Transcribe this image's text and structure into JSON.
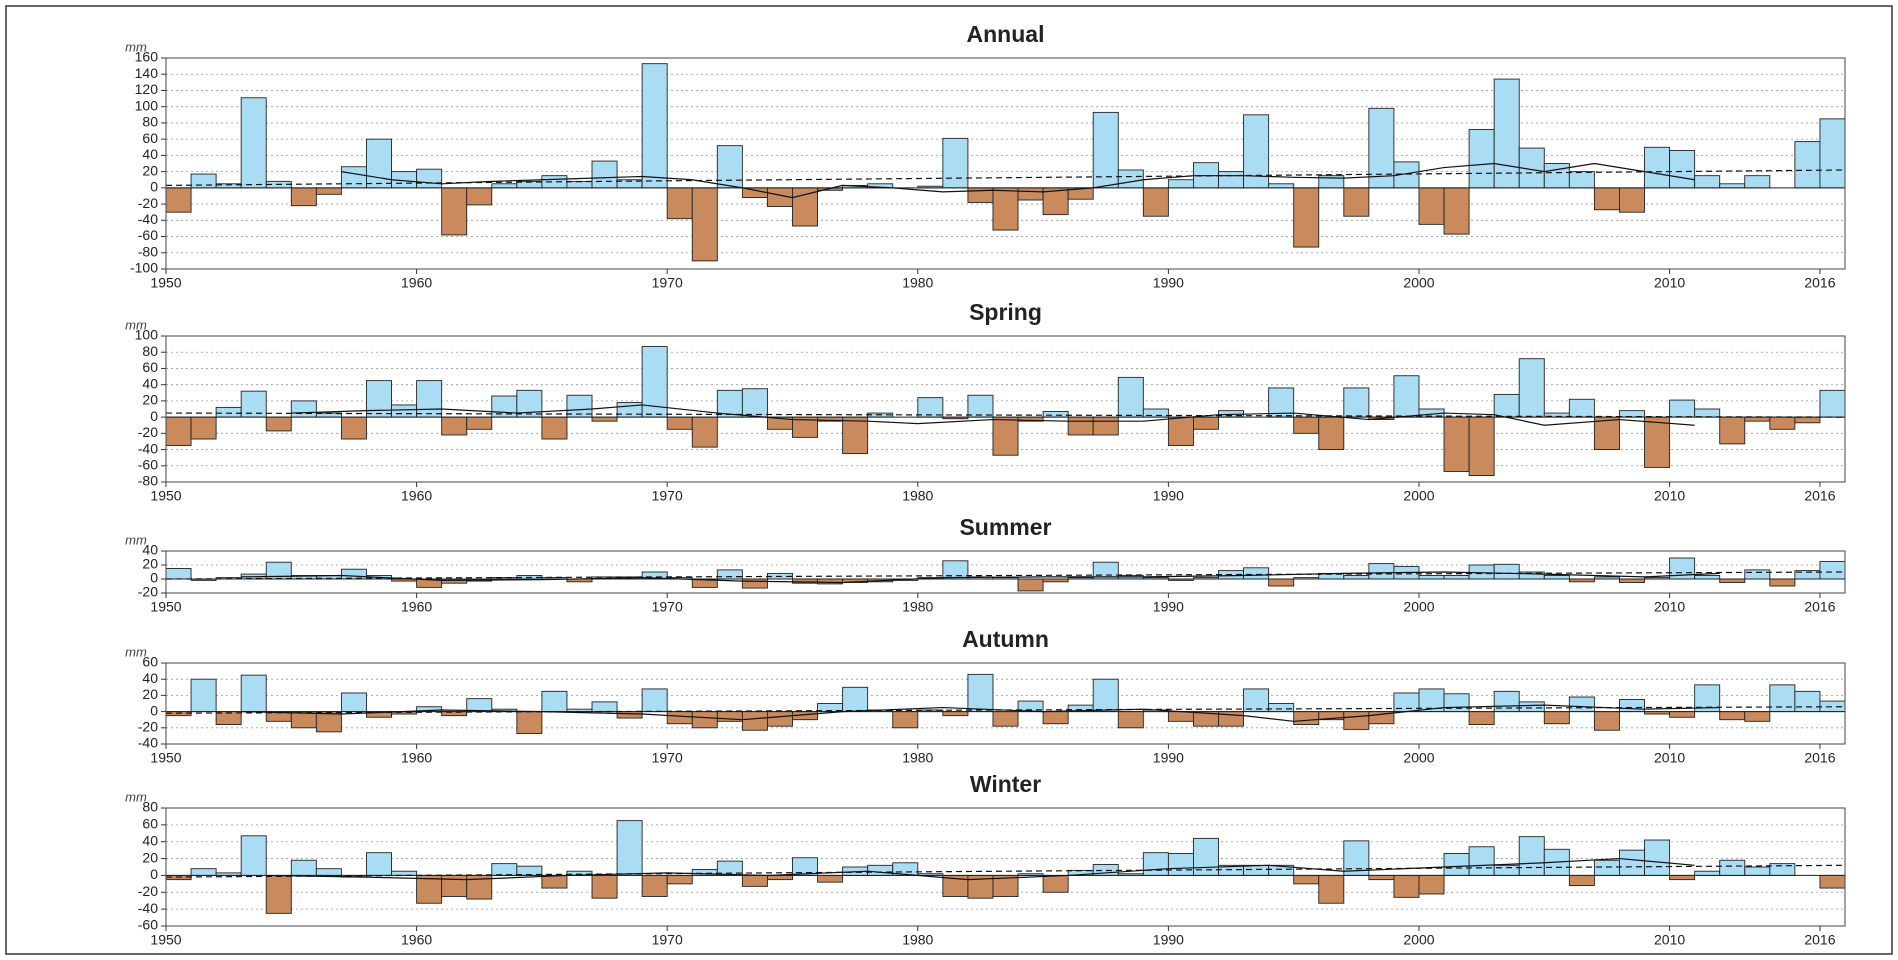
{
  "chart_data": [
    {
      "type": "bar",
      "title": "Annual",
      "unit": "mm",
      "pos_color": "#aadcf4",
      "neg_color": "#c98b5e",
      "grid": true,
      "x": [
        1950,
        1951,
        1952,
        1953,
        1954,
        1955,
        1956,
        1957,
        1958,
        1959,
        1960,
        1961,
        1962,
        1963,
        1964,
        1965,
        1966,
        1967,
        1968,
        1969,
        1970,
        1971,
        1972,
        1973,
        1974,
        1975,
        1976,
        1977,
        1978,
        1979,
        1980,
        1981,
        1982,
        1983,
        1984,
        1985,
        1986,
        1987,
        1988,
        1989,
        1990,
        1991,
        1992,
        1993,
        1994,
        1995,
        1996,
        1997,
        1998,
        1999,
        2000,
        2001,
        2002,
        2003,
        2004,
        2005,
        2006,
        2007,
        2008,
        2009,
        2010,
        2011,
        2012,
        2013,
        2014,
        2015,
        2016
      ],
      "values": [
        -30,
        17,
        5,
        111,
        8,
        -22,
        -8,
        26,
        60,
        20,
        23,
        -58,
        -21,
        5,
        8,
        15,
        8,
        33,
        10,
        153,
        -38,
        -90,
        52,
        -12,
        -23,
        -47,
        -3,
        3,
        5,
        0,
        2,
        61,
        -18,
        -52,
        -15,
        -33,
        -14,
        93,
        22,
        -35,
        10,
        31,
        20,
        90,
        5,
        -73,
        15,
        -35,
        98,
        32,
        -45,
        -57,
        72,
        134,
        49,
        30,
        20,
        -27,
        -30,
        50,
        46,
        15,
        5,
        15,
        0,
        57,
        85
      ],
      "smooth": {
        "x": [
          1957,
          1959,
          1961,
          1963,
          1965,
          1967,
          1969,
          1971,
          1973,
          1975,
          1977,
          1979,
          1981,
          1983,
          1985,
          1987,
          1989,
          1991,
          1993,
          1995,
          1997,
          1999,
          2001,
          2003,
          2005,
          2007,
          2009,
          2011
        ],
        "values": [
          20,
          10,
          5,
          8,
          10,
          12,
          14,
          10,
          0,
          -12,
          3,
          0,
          -5,
          -3,
          -5,
          0,
          10,
          15,
          15,
          13,
          12,
          15,
          25,
          30,
          20,
          30,
          20,
          10
        ]
      },
      "trend": {
        "x": [
          1950,
          2017
        ],
        "values": [
          3,
          22
        ]
      },
      "xlim": [
        1950,
        2017
      ],
      "xticks": [
        1950,
        1960,
        1970,
        1980,
        1990,
        2000,
        2010,
        2016
      ],
      "ylim": [
        -100,
        160
      ],
      "yticks": [
        -100,
        -80,
        -60,
        -40,
        -20,
        0,
        20,
        40,
        60,
        80,
        100,
        120,
        140,
        160
      ]
    },
    {
      "type": "bar",
      "title": "Spring",
      "unit": "mm",
      "pos_color": "#aadcf4",
      "neg_color": "#c98b5e",
      "grid": true,
      "x": [
        1950,
        1951,
        1952,
        1953,
        1954,
        1955,
        1956,
        1957,
        1958,
        1959,
        1960,
        1961,
        1962,
        1963,
        1964,
        1965,
        1966,
        1967,
        1968,
        1969,
        1970,
        1971,
        1972,
        1973,
        1974,
        1975,
        1976,
        1977,
        1978,
        1979,
        1980,
        1981,
        1982,
        1983,
        1984,
        1985,
        1986,
        1987,
        1988,
        1989,
        1990,
        1991,
        1992,
        1993,
        1994,
        1995,
        1996,
        1997,
        1998,
        1999,
        2000,
        2001,
        2002,
        2003,
        2004,
        2005,
        2006,
        2007,
        2008,
        2009,
        2010,
        2011,
        2012,
        2013,
        2014,
        2015,
        2016
      ],
      "values": [
        -35,
        -27,
        12,
        32,
        -17,
        20,
        5,
        -27,
        45,
        15,
        45,
        -22,
        -15,
        26,
        33,
        -27,
        27,
        -5,
        18,
        87,
        -15,
        -37,
        33,
        35,
        -15,
        -25,
        -5,
        -45,
        5,
        0,
        24,
        -2,
        27,
        -47,
        -5,
        7,
        -22,
        -22,
        49,
        10,
        -35,
        -15,
        8,
        0,
        36,
        -20,
        -40,
        36,
        -3,
        51,
        10,
        -67,
        -72,
        28,
        72,
        5,
        22,
        -40,
        8,
        -62,
        21,
        10,
        -33,
        -5,
        -15,
        -7,
        33
      ],
      "smooth": {
        "x": [
          1955,
          1958,
          1961,
          1964,
          1967,
          1969,
          1972,
          1975,
          1978,
          1980,
          1983,
          1986,
          1989,
          1992,
          1995,
          1998,
          2001,
          2003,
          2005,
          2008,
          2011
        ],
        "values": [
          5,
          8,
          10,
          5,
          10,
          15,
          5,
          -3,
          -5,
          -8,
          -3,
          -5,
          -5,
          3,
          5,
          -3,
          5,
          3,
          -10,
          -3,
          -10
        ]
      },
      "trend": {
        "x": [
          1950,
          2017
        ],
        "values": [
          5,
          0
        ]
      },
      "xlim": [
        1950,
        2017
      ],
      "xticks": [
        1950,
        1960,
        1970,
        1980,
        1990,
        2000,
        2010,
        2016
      ],
      "ylim": [
        -80,
        100
      ],
      "yticks": [
        -80,
        -60,
        -40,
        -20,
        0,
        20,
        40,
        60,
        80,
        100
      ]
    },
    {
      "type": "bar",
      "title": "Summer",
      "unit": "mm",
      "pos_color": "#aadcf4",
      "neg_color": "#c98b5e",
      "grid": true,
      "x": [
        1950,
        1951,
        1952,
        1953,
        1954,
        1955,
        1956,
        1957,
        1958,
        1959,
        1960,
        1961,
        1962,
        1963,
        1964,
        1965,
        1966,
        1967,
        1968,
        1969,
        1970,
        1971,
        1972,
        1973,
        1974,
        1975,
        1976,
        1977,
        1978,
        1979,
        1980,
        1981,
        1982,
        1983,
        1984,
        1985,
        1986,
        1987,
        1988,
        1989,
        1990,
        1991,
        1992,
        1993,
        1994,
        1995,
        1996,
        1997,
        1998,
        1999,
        2000,
        2001,
        2002,
        2003,
        2004,
        2005,
        2006,
        2007,
        2008,
        2009,
        2010,
        2011,
        2012,
        2013,
        2014,
        2015,
        2016
      ],
      "values": [
        15,
        -2,
        2,
        7,
        24,
        5,
        5,
        14,
        5,
        -3,
        -12,
        -6,
        -3,
        2,
        5,
        2,
        -4,
        3,
        3,
        10,
        2,
        -12,
        13,
        -13,
        8,
        -6,
        -7,
        -5,
        -4,
        -2,
        2,
        26,
        3,
        2,
        -17,
        -4,
        2,
        24,
        5,
        2,
        -2,
        2,
        12,
        16,
        -10,
        2,
        8,
        5,
        22,
        18,
        5,
        5,
        20,
        21,
        10,
        5,
        -4,
        3,
        -5,
        2,
        30,
        5,
        -5,
        13,
        -10,
        12,
        25
      ],
      "smooth": {
        "x": [
          1953,
          1957,
          1961,
          1965,
          1969,
          1973,
          1977,
          1981,
          1985,
          1989,
          1993,
          1997,
          2001,
          2005,
          2009,
          2012
        ],
        "values": [
          3,
          5,
          -2,
          -1,
          2,
          -3,
          -5,
          2,
          3,
          3,
          5,
          8,
          10,
          7,
          3,
          8
        ]
      },
      "trend": {
        "x": [
          1950,
          2017
        ],
        "values": [
          0,
          10
        ]
      },
      "xlim": [
        1950,
        2017
      ],
      "xticks": [
        1950,
        1960,
        1970,
        1980,
        1990,
        2000,
        2010,
        2016
      ],
      "ylim": [
        -20,
        40
      ],
      "yticks": [
        -20,
        0,
        20,
        40
      ]
    },
    {
      "type": "bar",
      "title": "Autumn",
      "unit": "mm",
      "pos_color": "#aadcf4",
      "neg_color": "#c98b5e",
      "grid": true,
      "x": [
        1950,
        1951,
        1952,
        1953,
        1954,
        1955,
        1956,
        1957,
        1958,
        1959,
        1960,
        1961,
        1962,
        1963,
        1964,
        1965,
        1966,
        1967,
        1968,
        1969,
        1970,
        1971,
        1972,
        1973,
        1974,
        1975,
        1976,
        1977,
        1978,
        1979,
        1980,
        1981,
        1982,
        1983,
        1984,
        1985,
        1986,
        1987,
        1988,
        1989,
        1990,
        1991,
        1992,
        1993,
        1994,
        1995,
        1996,
        1997,
        1998,
        1999,
        2000,
        2001,
        2002,
        2003,
        2004,
        2005,
        2006,
        2007,
        2008,
        2009,
        2010,
        2011,
        2012,
        2013,
        2014,
        2015,
        2016
      ],
      "values": [
        -5,
        40,
        -16,
        45,
        -12,
        -20,
        -25,
        23,
        -7,
        -3,
        6,
        -5,
        16,
        3,
        -27,
        25,
        3,
        12,
        -8,
        28,
        -15,
        -20,
        -12,
        -23,
        -18,
        -10,
        10,
        30,
        2,
        -20,
        2,
        -5,
        46,
        -18,
        13,
        -15,
        8,
        40,
        -20,
        2,
        -12,
        -18,
        -18,
        28,
        10,
        -16,
        -10,
        -22,
        -15,
        23,
        28,
        22,
        -16,
        25,
        12,
        -15,
        18,
        -23,
        15,
        -3,
        -7,
        33,
        -10,
        -12,
        33,
        25,
        13
      ],
      "smooth": {
        "x": [
          1953,
          1957,
          1961,
          1965,
          1969,
          1973,
          1977,
          1981,
          1985,
          1989,
          1993,
          1995,
          1998,
          2001,
          2005,
          2009,
          2012
        ],
        "values": [
          0,
          -3,
          2,
          0,
          -3,
          -10,
          0,
          5,
          0,
          3,
          -5,
          -12,
          -5,
          5,
          8,
          3,
          5
        ]
      },
      "trend": {
        "x": [
          1950,
          2017
        ],
        "values": [
          -2,
          6
        ]
      },
      "xlim": [
        1950,
        2017
      ],
      "xticks": [
        1950,
        1960,
        1970,
        1980,
        1990,
        2000,
        2010,
        2016
      ],
      "ylim": [
        -40,
        60
      ],
      "yticks": [
        -40,
        -20,
        0,
        20,
        40,
        60
      ]
    },
    {
      "type": "bar",
      "title": "Winter",
      "unit": "mm",
      "pos_color": "#aadcf4",
      "neg_color": "#c98b5e",
      "grid": true,
      "x": [
        1950,
        1951,
        1952,
        1953,
        1954,
        1955,
        1956,
        1957,
        1958,
        1959,
        1960,
        1961,
        1962,
        1963,
        1964,
        1965,
        1966,
        1967,
        1968,
        1969,
        1970,
        1971,
        1972,
        1973,
        1974,
        1975,
        1976,
        1977,
        1978,
        1979,
        1980,
        1981,
        1982,
        1983,
        1984,
        1985,
        1986,
        1987,
        1988,
        1989,
        1990,
        1991,
        1992,
        1993,
        1994,
        1995,
        1996,
        1997,
        1998,
        1999,
        2000,
        2001,
        2002,
        2003,
        2004,
        2005,
        2006,
        2007,
        2008,
        2009,
        2010,
        2011,
        2012,
        2013,
        2014,
        2015,
        2016
      ],
      "values": [
        -5,
        8,
        3,
        47,
        -45,
        18,
        8,
        -2,
        27,
        5,
        -33,
        -25,
        -28,
        14,
        11,
        -15,
        5,
        -27,
        65,
        -25,
        -10,
        7,
        17,
        -13,
        -5,
        21,
        -8,
        10,
        12,
        15,
        2,
        -25,
        -27,
        -25,
        2,
        -20,
        6,
        13,
        2,
        27,
        26,
        44,
        12,
        12,
        12,
        -10,
        -33,
        41,
        -5,
        -26,
        -22,
        26,
        34,
        12,
        46,
        31,
        -12,
        18,
        30,
        42,
        -5,
        5,
        18,
        10,
        14,
        0,
        -15
      ],
      "smooth": {
        "x": [
          1954,
          1958,
          1962,
          1966,
          1970,
          1974,
          1978,
          1982,
          1986,
          1990,
          1994,
          1997,
          2001,
          2005,
          2008,
          2011
        ],
        "values": [
          0,
          -2,
          -5,
          0,
          3,
          0,
          5,
          -5,
          0,
          8,
          12,
          5,
          10,
          15,
          20,
          12
        ]
      },
      "trend": {
        "x": [
          1950,
          2017
        ],
        "values": [
          -2,
          12
        ]
      },
      "xlim": [
        1950,
        2017
      ],
      "xticks": [
        1950,
        1960,
        1970,
        1980,
        1990,
        2000,
        2010,
        2016
      ],
      "ylim": [
        -60,
        80
      ],
      "yticks": [
        -60,
        -40,
        -20,
        0,
        20,
        40,
        60,
        80
      ]
    }
  ]
}
